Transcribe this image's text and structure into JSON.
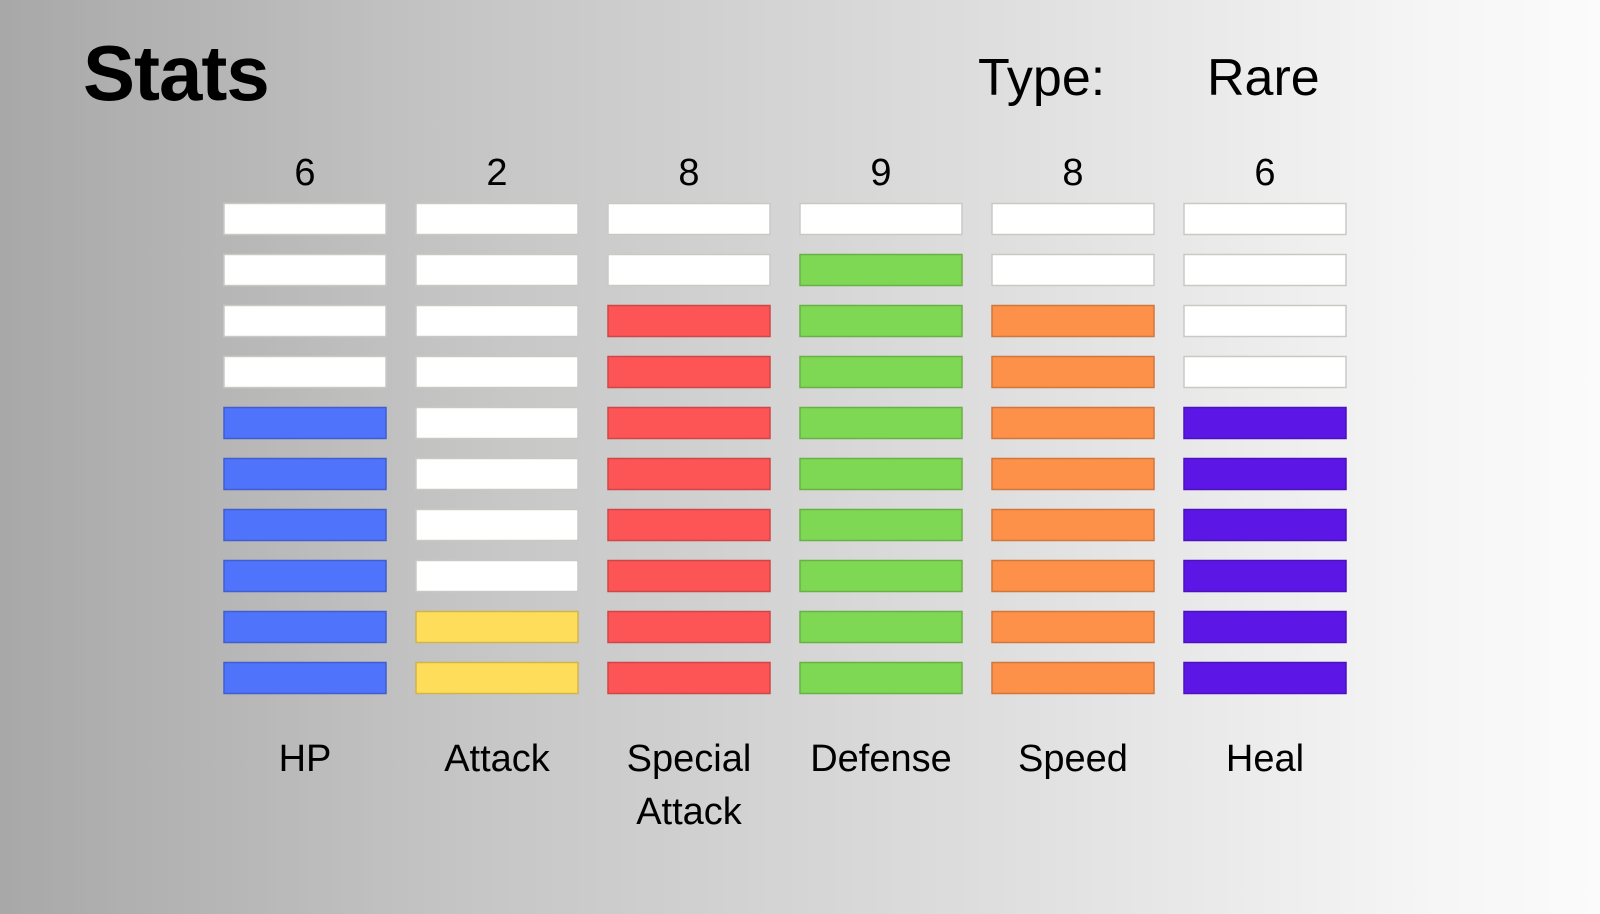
{
  "header": {
    "title": "Stats",
    "type_label": "Type:",
    "type_value": "Rare"
  },
  "chart_data": {
    "type": "bar",
    "title": "Stats",
    "max_value": 10,
    "categories": [
      "HP",
      "Attack",
      "Special Attack",
      "Defense",
      "Speed",
      "Heal"
    ],
    "label_lines": [
      [
        "HP"
      ],
      [
        "Attack"
      ],
      [
        "Special",
        "Attack"
      ],
      [
        "Defense"
      ],
      [
        "Speed"
      ],
      [
        "Heal"
      ]
    ],
    "values": [
      6,
      2,
      8,
      9,
      8,
      6
    ],
    "colors": [
      "#4f73fb",
      "#fedd5a",
      "#fd5555",
      "#7fd854",
      "#fe914a",
      "#5c16e6"
    ],
    "empty_color": "#ffffff",
    "grid": false
  }
}
